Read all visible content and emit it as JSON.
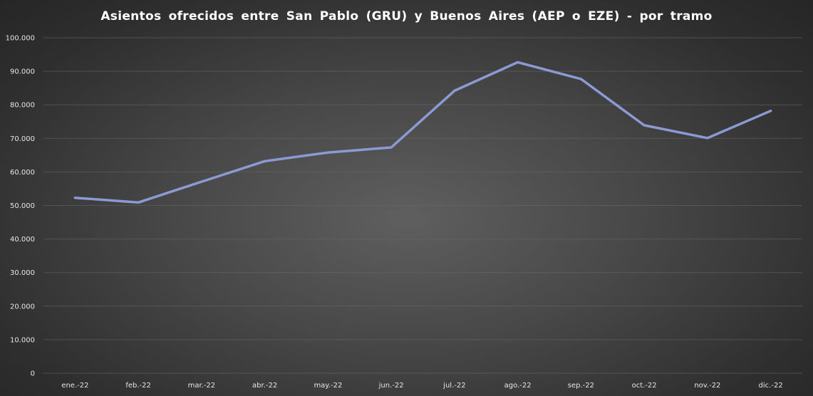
{
  "chart_data": {
    "type": "line",
    "title": "Asientos  ofrecidos  entre  San  Pablo  (GRU)  y  Buenos  Aires  (AEP  o  EZE)  -  por  tramo",
    "categories": [
      "ene.-22",
      "feb.-22",
      "mar.-22",
      "abr.-22",
      "may.-22",
      "jun.-22",
      "jul.-22",
      "ago.-22",
      "sep.-22",
      "oct.-22",
      "nov.-22",
      "dic.-22"
    ],
    "series": [
      {
        "values": [
          52300,
          50900,
          57100,
          63200,
          65800,
          67300,
          84200,
          92700,
          87700,
          73900,
          70100,
          78200
        ],
        "color": "#8b9ad2"
      }
    ],
    "ylim": [
      0,
      100000
    ],
    "yticks": [
      0,
      10000,
      20000,
      30000,
      40000,
      50000,
      60000,
      70000,
      80000,
      90000,
      100000
    ],
    "ytick_labels": [
      "0",
      "10.000",
      "20.000",
      "30.000",
      "40.000",
      "50.000",
      "60.000",
      "70.000",
      "80.000",
      "90.000",
      "100.000"
    ],
    "grid": true,
    "legend": "none",
    "background": "#3a3a3a",
    "grid_color": "#6a6a6a",
    "text_color": "#e6e6e6"
  }
}
